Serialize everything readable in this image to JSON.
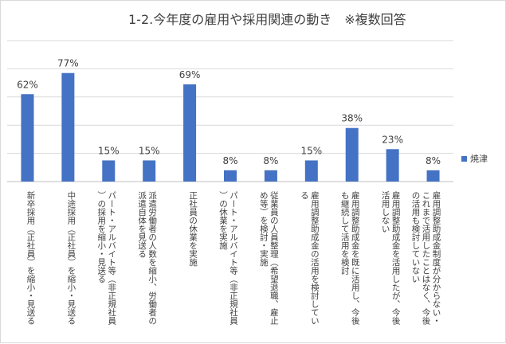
{
  "chart_data": {
    "type": "bar",
    "title": "1-2.今年度の雇用や採用関連の動き　※複数回答",
    "categories": [
      "新卒採用（正社員）を縮小・見送る",
      "中途採用（正社員）を縮小・見送る",
      "パート・アルバイト等（非正規社員）の採用を縮小・見送る",
      "派遣労働者の人数を縮小、労働者の派遣自体を見送る",
      "正社員の休業を実施",
      "パート・アルバイト等（非正規社員）の休業を実施",
      "従業員の人員整理（希望退職、雇止め等）を検討・実施",
      "雇用調整助成金の活用を検討している",
      "雇用調整助成金を既に活用し、今後も継続して活用を検討",
      "雇用調整助成金を活用したが、今後活用しない",
      "雇用調整助成金制度が分からない・これまで活用したことはなく、今後の活用も検討していない"
    ],
    "series": [
      {
        "name": "焼津",
        "values": [
          62,
          77,
          15,
          15,
          69,
          8,
          8,
          15,
          38,
          23,
          8
        ]
      }
    ],
    "data_labels": [
      "62%",
      "77%",
      "15%",
      "15%",
      "69%",
      "8%",
      "8%",
      "15%",
      "38%",
      "23%",
      "8%"
    ],
    "ylim": [
      0,
      100
    ],
    "grid": true,
    "legend_position": "right",
    "bar_color": "#4472c4"
  }
}
